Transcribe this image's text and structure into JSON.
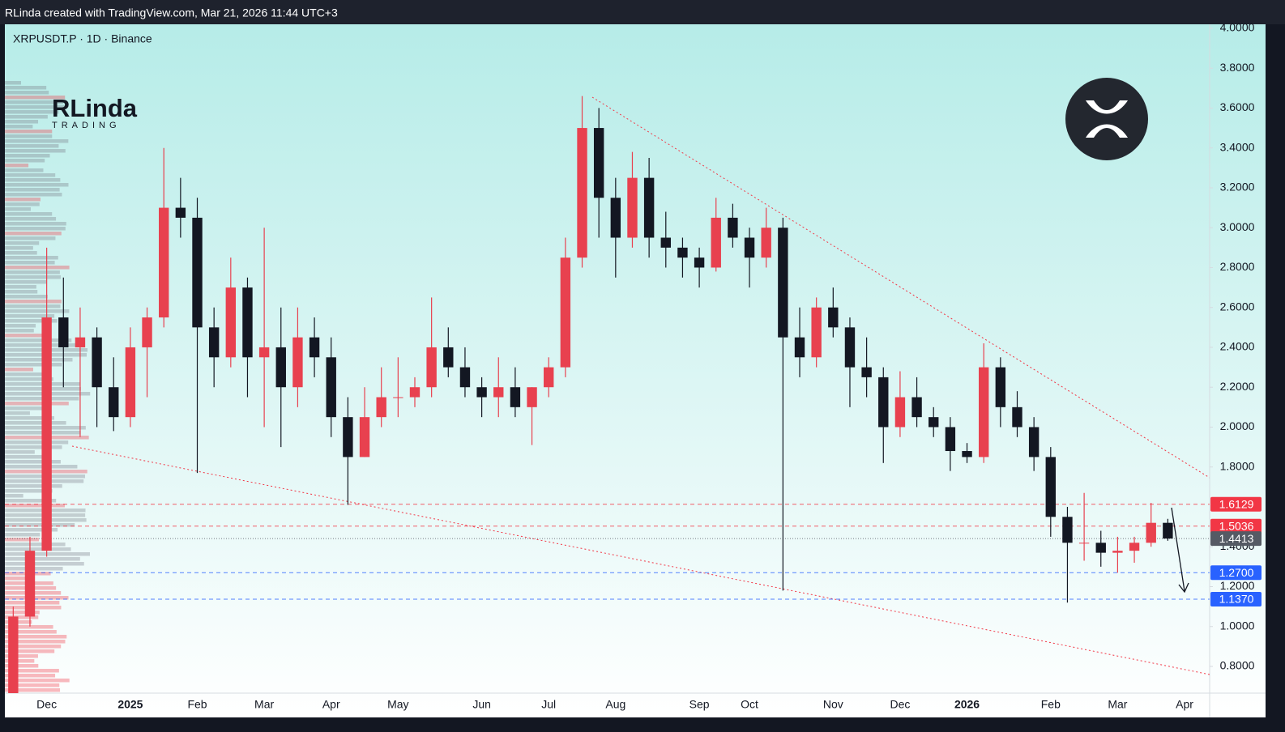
{
  "header": {
    "credit": "RLinda created with TradingView.com, Mar 21, 2026 11:44 UTC+3",
    "symbol": "XRPUSDT.P · 1D · Binance",
    "logo_name": "RLinda",
    "logo_sub": "TRADING"
  },
  "chart_data": {
    "type": "candlestick",
    "categories": [
      null,
      null,
      "Dec",
      null,
      null,
      null,
      null,
      "2025",
      null,
      null,
      null,
      "Feb",
      null,
      null,
      null,
      "Mar",
      null,
      null,
      null,
      "Apr",
      null,
      null,
      null,
      "May",
      null,
      null,
      null,
      null,
      "Jun",
      null,
      null,
      null,
      "Jul",
      null,
      null,
      null,
      "Aug",
      null,
      null,
      null,
      null,
      "Sep",
      null,
      null,
      "Oct",
      null,
      null,
      null,
      null,
      "Nov",
      null,
      null,
      null,
      "Dec",
      null,
      null,
      null,
      "2026",
      null,
      null,
      null,
      null,
      "Feb",
      null,
      null,
      null,
      "Mar",
      null,
      null,
      null,
      "Apr",
      null
    ],
    "open": [
      0.65,
      1.05,
      1.38,
      2.55,
      2.4,
      2.45,
      2.2,
      2.05,
      2.4,
      2.55,
      3.1,
      3.05,
      2.5,
      2.35,
      2.7,
      2.35,
      2.4,
      2.2,
      2.45,
      2.35,
      2.05,
      1.85,
      2.05,
      2.15,
      2.15,
      2.2,
      2.4,
      2.3,
      2.2,
      2.15,
      2.2,
      2.1,
      2.2,
      2.3,
      2.85,
      3.5,
      3.15,
      2.95,
      3.25,
      2.95,
      2.9,
      2.85,
      2.8,
      3.05,
      2.95,
      2.85,
      3.0,
      2.45,
      2.35,
      2.6,
      2.5,
      2.3,
      2.25,
      2.0,
      2.15,
      2.05,
      2.0,
      1.88,
      1.85,
      2.3,
      2.1,
      2.0,
      1.85,
      1.55,
      1.42,
      1.42,
      1.37,
      1.38,
      1.42,
      1.52,
      null,
      null
    ],
    "high": [
      1.1,
      1.45,
      2.9,
      2.75,
      2.6,
      2.5,
      2.35,
      2.5,
      2.6,
      3.4,
      3.25,
      3.15,
      2.6,
      2.85,
      2.75,
      3.0,
      2.6,
      2.6,
      2.55,
      2.45,
      2.15,
      2.2,
      2.3,
      2.35,
      2.25,
      2.65,
      2.5,
      2.4,
      2.25,
      2.35,
      2.3,
      2.2,
      2.35,
      2.95,
      3.66,
      3.6,
      3.25,
      3.38,
      3.35,
      3.08,
      2.95,
      2.9,
      3.15,
      3.12,
      3.0,
      3.1,
      3.05,
      2.6,
      2.65,
      2.7,
      2.55,
      2.45,
      2.3,
      2.28,
      2.25,
      2.1,
      2.05,
      1.92,
      2.42,
      2.35,
      2.18,
      2.05,
      1.9,
      1.6,
      1.67,
      1.48,
      1.45,
      1.45,
      1.62,
      1.54,
      null,
      null
    ],
    "low": [
      0.6,
      1.0,
      1.35,
      2.2,
      1.95,
      2.0,
      1.98,
      2.0,
      2.15,
      2.5,
      2.95,
      1.77,
      2.2,
      2.3,
      2.15,
      2.0,
      1.9,
      2.1,
      2.25,
      1.95,
      1.61,
      1.85,
      2.0,
      2.05,
      2.1,
      2.15,
      2.25,
      2.15,
      2.05,
      2.05,
      2.05,
      1.91,
      2.15,
      2.25,
      2.8,
      2.95,
      2.75,
      2.9,
      2.85,
      2.8,
      2.75,
      2.7,
      2.78,
      2.9,
      2.7,
      2.8,
      1.18,
      2.25,
      2.3,
      2.45,
      2.1,
      2.15,
      1.82,
      1.95,
      2.0,
      1.95,
      1.78,
      1.82,
      1.82,
      2.0,
      1.95,
      1.78,
      1.45,
      1.12,
      1.33,
      1.3,
      1.27,
      1.32,
      1.4,
      1.43,
      null,
      null
    ],
    "close": [
      1.05,
      1.38,
      2.55,
      2.4,
      2.45,
      2.2,
      2.05,
      2.4,
      2.55,
      3.1,
      3.05,
      2.5,
      2.35,
      2.7,
      2.35,
      2.4,
      2.2,
      2.45,
      2.35,
      2.05,
      1.85,
      2.05,
      2.15,
      2.15,
      2.2,
      2.4,
      2.3,
      2.2,
      2.15,
      2.2,
      2.1,
      2.2,
      2.3,
      2.85,
      3.5,
      3.15,
      2.95,
      3.25,
      2.95,
      2.9,
      2.85,
      2.8,
      3.05,
      2.95,
      2.85,
      3.0,
      2.45,
      2.35,
      2.6,
      2.5,
      2.3,
      2.25,
      2.0,
      2.15,
      2.05,
      2.0,
      1.88,
      1.85,
      2.3,
      2.1,
      2.0,
      1.85,
      1.55,
      1.42,
      1.42,
      1.37,
      1.38,
      1.42,
      1.52,
      1.4413,
      null,
      null
    ],
    "up_color": "#e8414f",
    "down_color": "#131722",
    "ylim": [
      0.666,
      4.02
    ],
    "yticks": [
      {
        "value": 0.8,
        "label": "0.8000"
      },
      {
        "value": 1.0,
        "label": "1.0000"
      },
      {
        "value": 1.2,
        "label": "1.2000"
      },
      {
        "value": 1.4,
        "label": "1.4000"
      },
      {
        "value": 1.8,
        "label": "1.8000"
      },
      {
        "value": 2.0,
        "label": "2.0000"
      },
      {
        "value": 2.2,
        "label": "2.2000"
      },
      {
        "value": 2.4,
        "label": "2.4000"
      },
      {
        "value": 2.6,
        "label": "2.6000"
      },
      {
        "value": 2.8,
        "label": "2.8000"
      },
      {
        "value": 3.0,
        "label": "3.0000"
      },
      {
        "value": 3.2,
        "label": "3.2000"
      },
      {
        "value": 3.4,
        "label": "3.4000"
      },
      {
        "value": 3.6,
        "label": "3.6000"
      },
      {
        "value": 3.8,
        "label": "3.8000"
      },
      {
        "value": 4.0,
        "label": "4.0000"
      }
    ],
    "levels": [
      {
        "value": 1.6129,
        "color": "#f23645",
        "style": "dashed"
      },
      {
        "value": 1.5036,
        "color": "#f23645",
        "style": "dashed"
      },
      {
        "value": 1.4413,
        "color": "#555a64",
        "style": "dotted"
      },
      {
        "value": 1.27,
        "label": "1.2700",
        "color": "#2962ff",
        "style": "dashed"
      },
      {
        "value": 1.137,
        "label": "1.1370",
        "color": "#2962ff",
        "style": "dashed"
      }
    ]
  }
}
